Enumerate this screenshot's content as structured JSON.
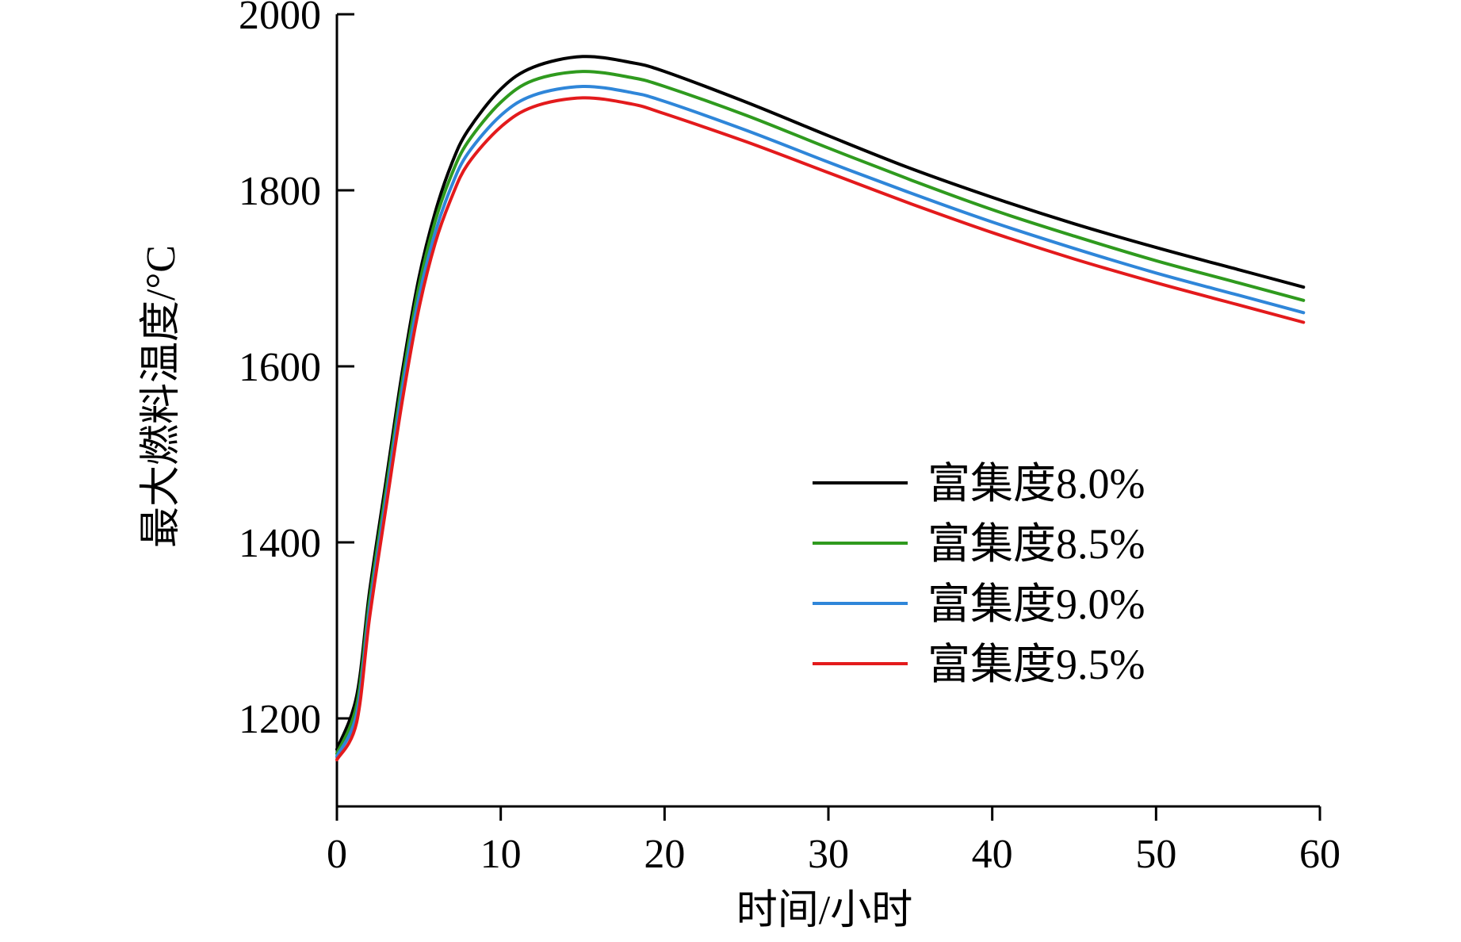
{
  "chart_data": {
    "type": "line",
    "title": "",
    "xlabel": "时间/小时",
    "ylabel": "最大燃料温度/°C",
    "xlim": [
      0,
      60
    ],
    "ylim": [
      1100,
      2000
    ],
    "x_ticks": [
      "0",
      "10",
      "20",
      "30",
      "40",
      "50",
      "60"
    ],
    "y_ticks": [
      "1200",
      "1400",
      "1600",
      "1800",
      "2000"
    ],
    "legend_position": "center-right",
    "grid": false,
    "x": [
      0,
      1.2,
      2,
      3,
      4,
      5,
      6,
      7,
      8,
      10,
      12,
      15,
      18,
      20,
      25,
      30,
      35,
      40,
      45,
      50,
      55,
      59
    ],
    "series": [
      {
        "name": "富集度8.0%",
        "color": "#000000",
        "values": [
          1165,
          1225,
          1345,
          1470,
          1595,
          1700,
          1775,
          1830,
          1868,
          1915,
          1940,
          1952,
          1945,
          1935,
          1900,
          1862,
          1825,
          1792,
          1762,
          1735,
          1710,
          1690
        ]
      },
      {
        "name": "富集度8.5%",
        "color": "#2f9a1e",
        "values": [
          1160,
          1215,
          1335,
          1460,
          1585,
          1690,
          1765,
          1818,
          1855,
          1900,
          1925,
          1935,
          1928,
          1918,
          1885,
          1848,
          1812,
          1778,
          1748,
          1720,
          1695,
          1675
        ]
      },
      {
        "name": "富集度9.0%",
        "color": "#2f86d9",
        "values": [
          1157,
          1205,
          1325,
          1450,
          1575,
          1678,
          1752,
          1805,
          1842,
          1885,
          1908,
          1918,
          1911,
          1901,
          1868,
          1832,
          1797,
          1764,
          1734,
          1706,
          1681,
          1661
        ]
      },
      {
        "name": "富集度9.5%",
        "color": "#e31a1c",
        "values": [
          1153,
          1195,
          1315,
          1440,
          1562,
          1665,
          1740,
          1792,
          1830,
          1872,
          1895,
          1905,
          1898,
          1887,
          1855,
          1820,
          1785,
          1752,
          1722,
          1695,
          1670,
          1650
        ]
      }
    ]
  }
}
